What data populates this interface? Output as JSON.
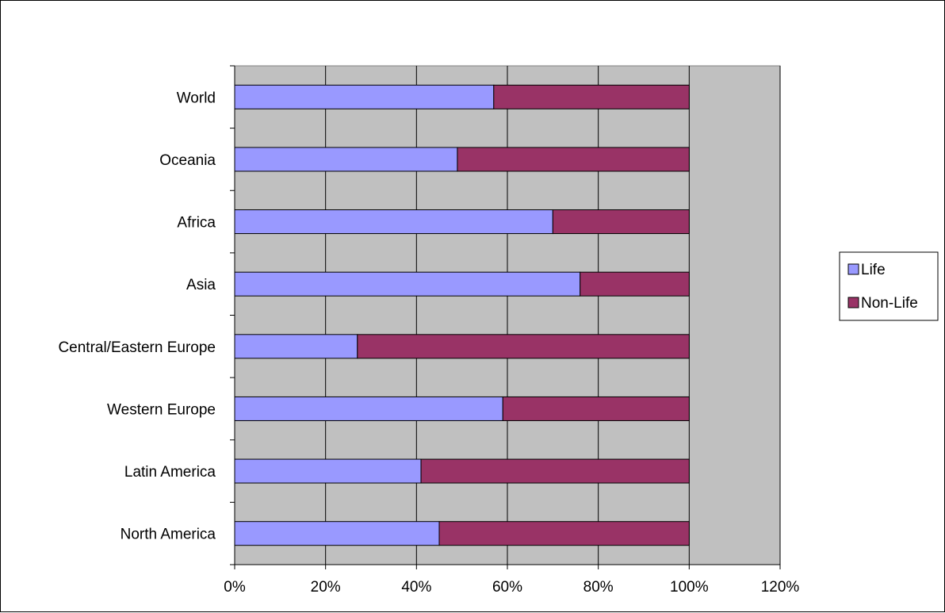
{
  "chart_data": {
    "type": "bar",
    "orientation": "horizontal",
    "stacked": "percent",
    "categories": [
      "World",
      "Oceania",
      "Africa",
      "Asia",
      "Central/Eastern Europe",
      "Western Europe",
      "Latin America",
      "North America"
    ],
    "series": [
      {
        "name": "Life",
        "color": "#9999ff",
        "values": [
          57,
          49,
          70,
          76,
          27,
          59,
          41,
          45
        ]
      },
      {
        "name": "Non-Life",
        "color": "#993366",
        "values": [
          43,
          51,
          30,
          24,
          73,
          41,
          59,
          55
        ]
      }
    ],
    "xlim": [
      0,
      120
    ],
    "xticks": [
      "0%",
      "20%",
      "40%",
      "60%",
      "80%",
      "100%",
      "120%"
    ],
    "grid": true,
    "plot_background": "#c0c0c0",
    "legend_position": "right"
  }
}
